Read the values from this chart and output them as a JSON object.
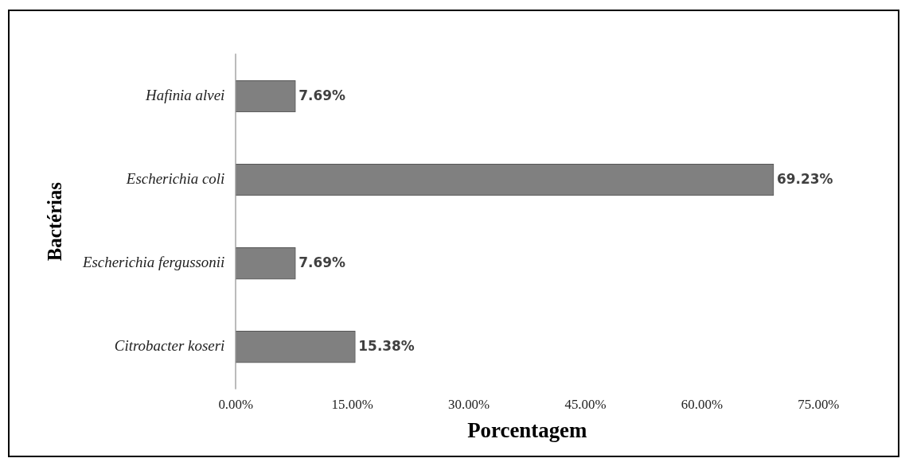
{
  "chart_data": {
    "type": "bar",
    "orientation": "horizontal",
    "xlabel": "Porcentagem",
    "ylabel": "Bactérias",
    "categories": [
      "Hafinia alvei",
      "Escherichia coli",
      "Escherichia fergussonii",
      "Citrobacter koseri"
    ],
    "values": [
      7.69,
      69.23,
      7.69,
      15.38
    ],
    "value_labels": [
      "7.69%",
      "69.23%",
      "7.69%",
      "15.38%"
    ],
    "color": "#808080",
    "xlim": [
      0,
      75
    ],
    "xticks": [
      {
        "value": 0,
        "label": "0.00%"
      },
      {
        "value": 15,
        "label": "15.00%"
      },
      {
        "value": 30,
        "label": "30.00%"
      },
      {
        "value": 45,
        "label": "45.00%"
      },
      {
        "value": 60,
        "label": "60.00%"
      },
      {
        "value": 75,
        "label": "75.00%"
      }
    ]
  }
}
